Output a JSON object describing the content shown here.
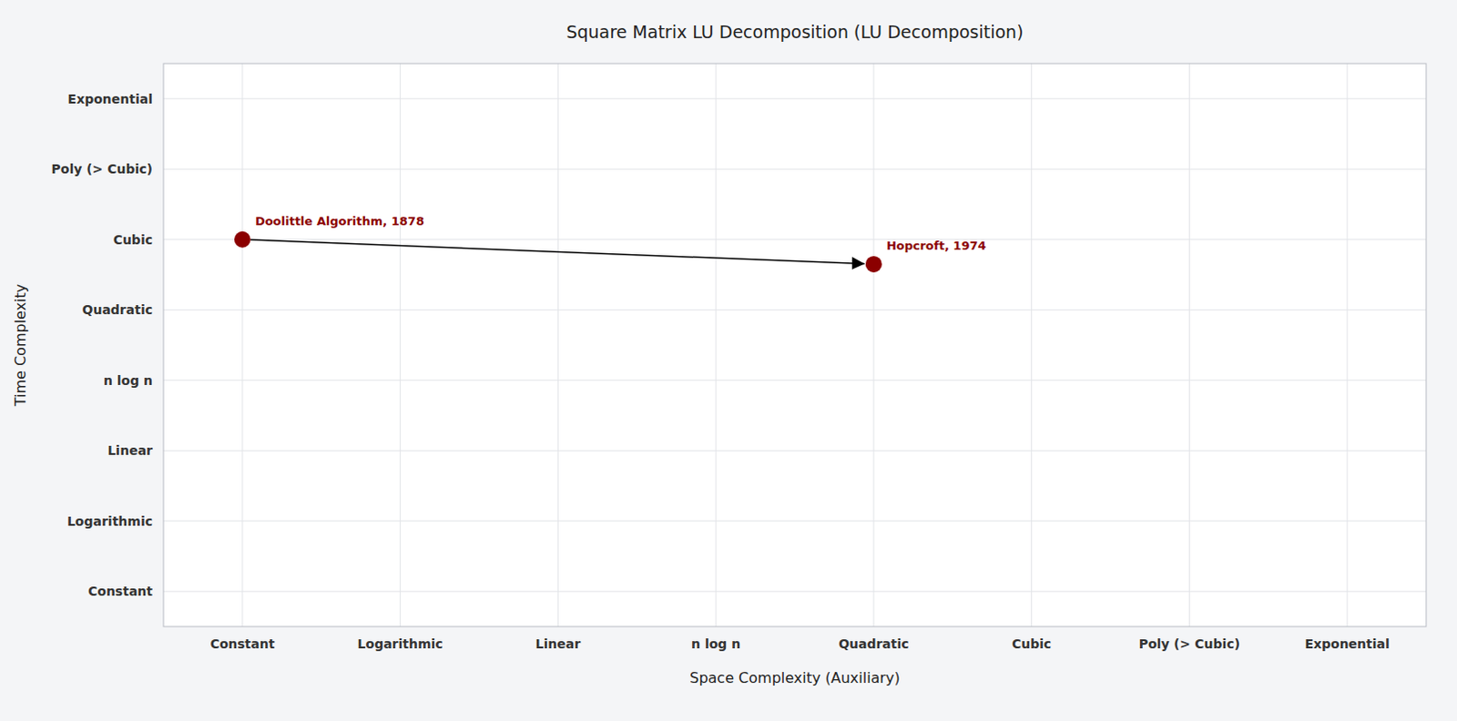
{
  "chart_data": {
    "type": "scatter",
    "title": "Square Matrix LU Decomposition (LU Decomposition)",
    "x_label": "Space Complexity (Auxiliary)",
    "y_label": "Time Complexity",
    "xlim": [
      -0.5,
      7.5
    ],
    "ylim": [
      -0.5,
      7.5
    ],
    "xticks": [
      {
        "value": 0,
        "label": "Constant"
      },
      {
        "value": 1,
        "label": "Logarithmic"
      },
      {
        "value": 2,
        "label": "Linear"
      },
      {
        "value": 3,
        "label": "n log n"
      },
      {
        "value": 4,
        "label": "Quadratic"
      },
      {
        "value": 5,
        "label": "Cubic"
      },
      {
        "value": 6,
        "label": "Poly (> Cubic)"
      },
      {
        "value": 7,
        "label": "Exponential"
      }
    ],
    "yticks": [
      {
        "value": 0,
        "label": "Constant"
      },
      {
        "value": 1,
        "label": "Logarithmic"
      },
      {
        "value": 2,
        "label": "Linear"
      },
      {
        "value": 3,
        "label": "n log n"
      },
      {
        "value": 4,
        "label": "Quadratic"
      },
      {
        "value": 5,
        "label": "Cubic"
      },
      {
        "value": 6,
        "label": "Poly (> Cubic)"
      },
      {
        "value": 7,
        "label": "Exponential"
      }
    ],
    "grid": true,
    "series": [
      {
        "name": "Doolittle Algorithm, 1878",
        "color": "#8b0000",
        "x": [
          0
        ],
        "values": [
          5
        ]
      },
      {
        "name": "Hopcroft, 1974",
        "color": "#8b0000",
        "x": [
          4
        ],
        "values": [
          4.65
        ]
      }
    ],
    "arrow": {
      "from_series": 0,
      "to_series": 1,
      "color": "black"
    }
  }
}
